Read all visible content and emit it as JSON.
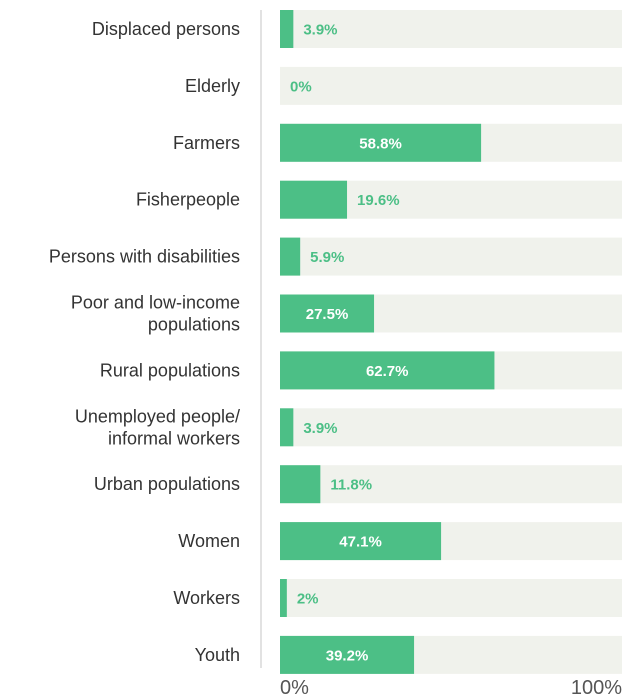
{
  "colors": {
    "bar": "#4cbf86",
    "track": "#f0f2ec",
    "label_inside": "#ffffff",
    "label_outside": "#4cbf86",
    "axis": "#d9d9d9"
  },
  "chart_data": {
    "type": "bar",
    "orientation": "horizontal",
    "categories": [
      [
        "Displaced persons"
      ],
      [
        "Elderly"
      ],
      [
        "Farmers"
      ],
      [
        "Fisherpeople"
      ],
      [
        "Persons with disabilities"
      ],
      [
        "Poor and low-income",
        "populations"
      ],
      [
        "Rural populations"
      ],
      [
        "Unemployed people/",
        "informal workers"
      ],
      [
        "Urban populations"
      ],
      [
        "Women"
      ],
      [
        "Workers"
      ],
      [
        "Youth"
      ]
    ],
    "values": [
      3.9,
      0,
      58.8,
      19.6,
      5.9,
      27.5,
      62.7,
      3.9,
      11.8,
      47.1,
      2,
      39.2
    ],
    "value_labels": [
      "3.9%",
      "0%",
      "58.8%",
      "19.6%",
      "5.9%",
      "27.5%",
      "62.7%",
      "3.9%",
      "11.8%",
      "47.1%",
      "2%",
      "39.2%"
    ],
    "xlim": [
      0,
      100
    ],
    "x_ticks": [
      "0%",
      "100%"
    ],
    "grid": false
  }
}
